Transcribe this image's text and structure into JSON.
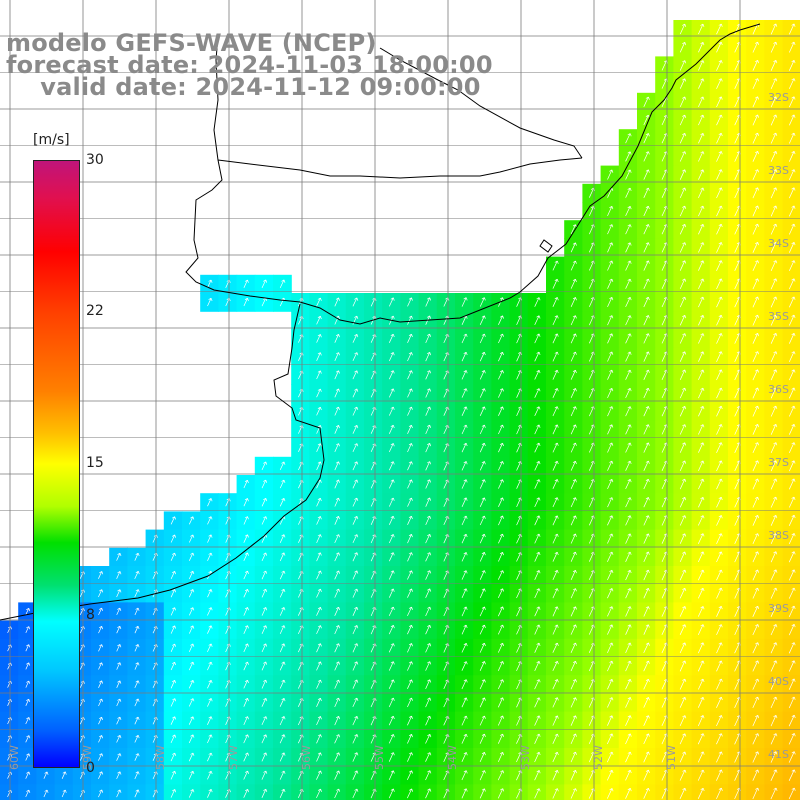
{
  "title": {
    "line1": "modelo GEFS-WAVE (NCEP)",
    "line2": "forecast date: 2024-11-03 18:00:00",
    "line3": "    valid date: 2024-11-12 09:00:00"
  },
  "colorbar": {
    "unit": "[m/s]",
    "ticks": [
      {
        "label": "30",
        "value": 30
      },
      {
        "label": "22",
        "value": 22
      },
      {
        "label": "15",
        "value": 15
      },
      {
        "label": "8",
        "value": 8
      },
      {
        "label": "0",
        "value": 0
      }
    ],
    "min": 0,
    "max": 30
  },
  "map": {
    "lat_labels": [
      "32S",
      "33S",
      "34S",
      "35S",
      "36S",
      "37S",
      "38S",
      "39S",
      "40S",
      "41S"
    ],
    "lon_labels": [
      "60W",
      "59W",
      "58W",
      "57W",
      "56W",
      "55W",
      "54W",
      "53W",
      "52W",
      "51W"
    ],
    "colors": {
      "land": "#ffffff",
      "grid": "#7a7a7a",
      "coast": "#000000",
      "arrow": "#ffffff",
      "label": "#9a9a9a"
    }
  }
}
